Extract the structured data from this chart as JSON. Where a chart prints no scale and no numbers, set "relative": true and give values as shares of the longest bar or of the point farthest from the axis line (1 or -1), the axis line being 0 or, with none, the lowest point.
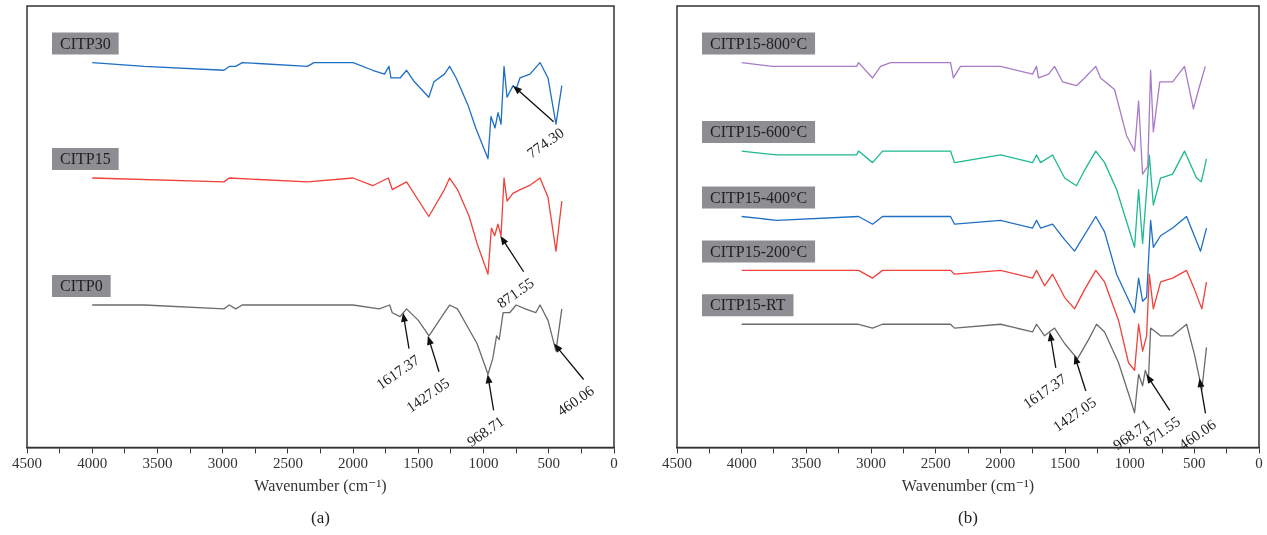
{
  "chart_data": [
    {
      "type": "line",
      "title": "(a)",
      "xlabel": "Wavenumber (cm⁻¹)",
      "relative": true,
      "marker": "none",
      "tick_labels": "x",
      "xlim": [
        4500,
        0
      ],
      "xticks": [
        4500,
        {
          "value": 4250,
          "label": null
        },
        4000,
        {
          "value": 3750,
          "label": null
        },
        3500,
        {
          "value": 3250,
          "label": null
        },
        3000,
        {
          "value": 2750,
          "label": null
        },
        2500,
        {
          "value": 2250,
          "label": null
        },
        2000,
        {
          "value": 1750,
          "label": null
        },
        1500,
        {
          "value": 1250,
          "label": null
        },
        1000,
        {
          "value": 750,
          "label": null
        },
        500,
        {
          "value": 250,
          "label": null
        },
        0
      ],
      "series": [
        {
          "name": "CITP30",
          "color": "#1f6fc5",
          "x": [
            4000,
            3600,
            2990,
            2950,
            2900,
            2850,
            2350,
            2300,
            2000,
            1850,
            1760,
            1725,
            1710,
            1640,
            1590,
            1530,
            1420,
            1380,
            1300,
            1260,
            1210,
            1120,
            1060,
            966,
            943,
            912,
            889,
            866,
            843,
            820,
            774,
            751,
            721,
            644,
            567,
            506,
            445,
            400
          ],
          "values": [
            1.0,
            0.99,
            0.98,
            0.99,
            0.99,
            1.0,
            0.99,
            1.0,
            1.0,
            0.98,
            0.97,
            0.99,
            0.96,
            0.96,
            0.98,
            0.95,
            0.91,
            0.95,
            0.97,
            0.99,
            0.96,
            0.89,
            0.83,
            0.75,
            0.86,
            0.83,
            0.87,
            0.84,
            0.99,
            0.91,
            0.94,
            0.93,
            0.96,
            0.97,
            1.0,
            0.96,
            0.84,
            0.94
          ]
        },
        {
          "name": "CITP15",
          "color": "#f0413a",
          "x": [
            4000,
            2990,
            2950,
            2350,
            2000,
            1850,
            1730,
            1700,
            1590,
            1420,
            1300,
            1260,
            1200,
            1110,
            1050,
            966,
            940,
            915,
            890,
            866,
            843,
            820,
            775,
            720,
            650,
            567,
            506,
            445,
            400
          ],
          "values": [
            0.7,
            0.69,
            0.7,
            0.69,
            0.7,
            0.68,
            0.7,
            0.67,
            0.69,
            0.6,
            0.67,
            0.7,
            0.67,
            0.6,
            0.53,
            0.45,
            0.57,
            0.55,
            0.58,
            0.55,
            0.7,
            0.64,
            0.66,
            0.67,
            0.68,
            0.7,
            0.65,
            0.51,
            0.64
          ]
        },
        {
          "name": "CITP0",
          "color": "#6b6b6b",
          "x": [
            4000,
            3600,
            2990,
            2950,
            2900,
            2850,
            2000,
            1800,
            1720,
            1700,
            1640,
            1590,
            1500,
            1418,
            1300,
            1260,
            1200,
            1100,
            1050,
            966,
            930,
            900,
            880,
            850,
            800,
            750,
            680,
            600,
            567,
            506,
            445,
            400
          ],
          "values": [
            0.37,
            0.37,
            0.36,
            0.37,
            0.36,
            0.37,
            0.37,
            0.36,
            0.37,
            0.35,
            0.34,
            0.36,
            0.33,
            0.29,
            0.35,
            0.37,
            0.36,
            0.3,
            0.27,
            0.19,
            0.23,
            0.29,
            0.28,
            0.35,
            0.35,
            0.37,
            0.36,
            0.35,
            0.37,
            0.33,
            0.25,
            0.36
          ]
        }
      ],
      "annotations": [
        {
          "text": "774.30",
          "x": 774.3,
          "y": 0.94
        },
        {
          "text": "871.55",
          "x": 871.55,
          "y": 0.55
        },
        {
          "text": "1617.37",
          "x": 1617.37,
          "y": 0.35
        },
        {
          "text": "1427.05",
          "x": 1427.05,
          "y": 0.29
        },
        {
          "text": "968.71",
          "x": 968.71,
          "y": 0.19
        },
        {
          "text": "460.06",
          "x": 460.06,
          "y": 0.27
        }
      ]
    },
    {
      "type": "line",
      "title": "(b)",
      "xlabel": "Wavenumber (cm⁻¹)",
      "relative": true,
      "marker": "none",
      "tick_labels": "x",
      "xlim": [
        4500,
        0
      ],
      "xticks": [
        4500,
        {
          "value": 4250,
          "label": null
        },
        4000,
        {
          "value": 3750,
          "label": null
        },
        3500,
        {
          "value": 3250,
          "label": null
        },
        3000,
        {
          "value": 2750,
          "label": null
        },
        2500,
        {
          "value": 2250,
          "label": null
        },
        2000,
        {
          "value": 1750,
          "label": null
        },
        1500,
        {
          "value": 1250,
          "label": null
        },
        1000,
        {
          "value": 750,
          "label": null
        },
        500,
        {
          "value": 250,
          "label": null
        },
        0
      ],
      "series": [
        {
          "name": "CITP15-800°C",
          "color": "#a77bc8",
          "x": [
            4000,
            3761,
            3684,
            3545,
            3112,
            3096,
            2988,
            2926,
            2849,
            2385,
            2363,
            2308,
            1998,
            1751,
            1720,
            1705,
            1627,
            1581,
            1519,
            1411,
            1349,
            1262,
            1225,
            1117,
            1024,
            962,
            931,
            900,
            860,
            838,
            817,
            767,
            668,
            576,
            507,
            467,
            415
          ],
          "values": [
            1.0,
            0.99,
            0.99,
            0.99,
            0.99,
            1.0,
            0.96,
            0.99,
            1.0,
            1.0,
            0.96,
            0.99,
            0.99,
            0.97,
            0.99,
            0.96,
            0.97,
            0.99,
            0.95,
            0.94,
            0.96,
            0.99,
            0.96,
            0.93,
            0.81,
            0.77,
            0.9,
            0.71,
            0.73,
            0.98,
            0.82,
            0.95,
            0.95,
            0.99,
            0.88,
            0.93,
            0.99
          ]
        },
        {
          "name": "CITP15-600°C",
          "color": "#1db990",
          "x": [
            4000,
            3730,
            3112,
            3096,
            2988,
            2911,
            2385,
            2354,
            1998,
            1751,
            1720,
            1689,
            1596,
            1503,
            1411,
            1349,
            1262,
            1194,
            1101,
            962,
            931,
            900,
            848,
            817,
            761,
            668,
            576,
            483,
            446,
            406
          ],
          "values": [
            0.77,
            0.76,
            0.76,
            0.77,
            0.74,
            0.77,
            0.77,
            0.74,
            0.76,
            0.74,
            0.76,
            0.74,
            0.76,
            0.7,
            0.68,
            0.72,
            0.77,
            0.74,
            0.67,
            0.52,
            0.67,
            0.53,
            0.76,
            0.63,
            0.7,
            0.71,
            0.77,
            0.7,
            0.69,
            0.75
          ]
        },
        {
          "name": "CITP15-400°C",
          "color": "#1f6fc5",
          "x": [
            4000,
            3730,
            3096,
            2988,
            2911,
            2385,
            2354,
            1998,
            1751,
            1720,
            1689,
            1596,
            1503,
            1426,
            1262,
            1194,
            1101,
            962,
            931,
            900,
            869,
            838,
            817,
            761,
            668,
            560,
            452,
            406
          ],
          "values": [
            0.6,
            0.59,
            0.6,
            0.58,
            0.6,
            0.6,
            0.58,
            0.59,
            0.57,
            0.59,
            0.57,
            0.58,
            0.54,
            0.51,
            0.6,
            0.56,
            0.45,
            0.35,
            0.44,
            0.38,
            0.39,
            0.59,
            0.52,
            0.55,
            0.57,
            0.6,
            0.51,
            0.57
          ]
        },
        {
          "name": "CITP15-200°C",
          "color": "#f0413a",
          "x": [
            4000,
            3730,
            3096,
            2988,
            2911,
            2385,
            2354,
            1998,
            1751,
            1720,
            1658,
            1596,
            1503,
            1426,
            1349,
            1262,
            1194,
            1086,
            1009,
            962,
            931,
            900,
            869,
            848,
            817,
            761,
            668,
            560,
            498,
            442,
            406
          ],
          "values": [
            0.46,
            0.46,
            0.46,
            0.44,
            0.46,
            0.46,
            0.45,
            0.46,
            0.44,
            0.46,
            0.42,
            0.45,
            0.39,
            0.36,
            0.41,
            0.46,
            0.43,
            0.33,
            0.22,
            0.2,
            0.32,
            0.25,
            0.29,
            0.45,
            0.36,
            0.43,
            0.44,
            0.46,
            0.41,
            0.36,
            0.43
          ]
        },
        {
          "name": "CITP15-RT",
          "color": "#6b6b6b",
          "x": [
            4000,
            3730,
            3096,
            2988,
            2911,
            2385,
            2354,
            1998,
            1751,
            1720,
            1658,
            1581,
            1503,
            1404,
            1318,
            1256,
            1194,
            1086,
            1009,
            962,
            931,
            900,
            879,
            854,
            838,
            761,
            668,
            560,
            498,
            442,
            406
          ],
          "values": [
            0.32,
            0.32,
            0.32,
            0.31,
            0.32,
            0.32,
            0.31,
            0.32,
            0.3,
            0.32,
            0.29,
            0.31,
            0.27,
            0.23,
            0.28,
            0.32,
            0.3,
            0.22,
            0.14,
            0.09,
            0.19,
            0.16,
            0.2,
            0.18,
            0.31,
            0.29,
            0.29,
            0.32,
            0.24,
            0.15,
            0.26
          ]
        }
      ],
      "annotations": [
        {
          "text": "1617.37",
          "x": 1617.37,
          "y": 0.3
        },
        {
          "text": "1427.05",
          "x": 1427.05,
          "y": 0.24
        },
        {
          "text": "968.71",
          "x": 968.71,
          "y": 0.1
        },
        {
          "text": "871.55",
          "x": 871.55,
          "y": 0.19
        },
        {
          "text": "460.06",
          "x": 460.06,
          "y": 0.18
        }
      ]
    }
  ]
}
